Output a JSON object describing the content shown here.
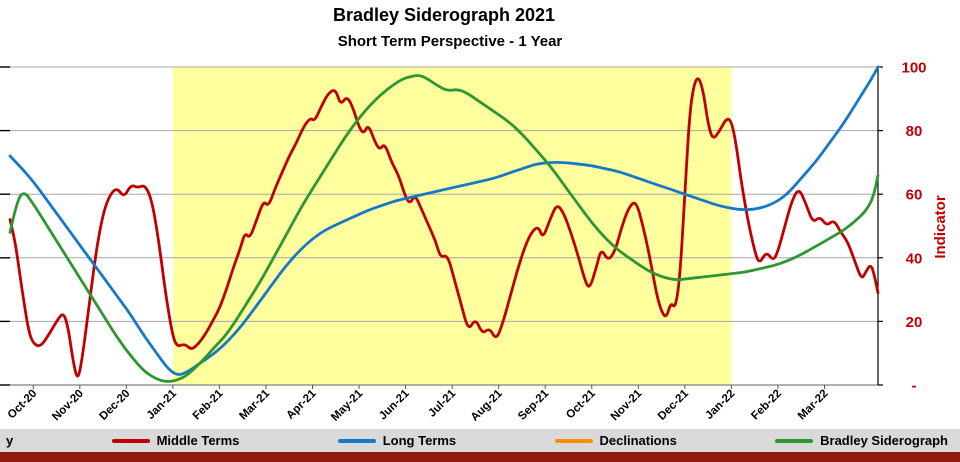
{
  "title": "Bradley Siderograph 2021",
  "subtitle": "Short Term Perspective - 1 Year",
  "right_axis": {
    "label": "Indicator",
    "color": "#c00000",
    "tick_labels": [
      "100",
      "80",
      "60",
      "40",
      "20",
      "-"
    ],
    "tick_values": [
      100,
      80,
      60,
      40,
      20,
      0
    ]
  },
  "legend": {
    "background": "#d9d9d9",
    "partial_left_label": "y",
    "items": [
      {
        "label": "Middle Terms",
        "color": "#c00000"
      },
      {
        "label": "Long Terms",
        "color": "#1878c8"
      },
      {
        "label": "Declinations",
        "color": "#ff8c00"
      },
      {
        "label": "Bradley Siderograph",
        "color": "#2e9632"
      }
    ]
  },
  "footer_bar_color": "#8f1a10",
  "colors": {
    "gridline": "#a6a6a6",
    "axis_line": "#000000",
    "highlight": "#ffff9e",
    "tick_label": "#000000"
  },
  "chart_data": {
    "type": "line",
    "title": "Bradley Siderograph 2021",
    "subtitle": "Short Term Perspective - 1 Year",
    "ylabel": "Indicator",
    "ylim": [
      0,
      100
    ],
    "xlim_months": [
      -0.5,
      18.15
    ],
    "grid_y": [
      20,
      40,
      60,
      80,
      100
    ],
    "x_unit": "months, 0 = Oct-20",
    "x_tick_positions": [
      0,
      1,
      2,
      3,
      4,
      5,
      6,
      7,
      8,
      9,
      10,
      11,
      12,
      13,
      14,
      15,
      16,
      17
    ],
    "x_tick_labels": [
      "Oct-20",
      "Nov-20",
      "Dec-20",
      "Jan-21",
      "Feb-21",
      "Mar-21",
      "Apr-21",
      "May-21",
      "Jun-21",
      "Jul-21",
      "Aug-21",
      "Sep-21",
      "Oct-21",
      "Nov-21",
      "Dec-21",
      "Jan-22",
      "Feb-22",
      "Mar-22"
    ],
    "highlight_band": {
      "from_month_index": 3,
      "to_month_index": 15,
      "from_label": "Jan-21",
      "to_label": "Jan-22",
      "color": "#ffff9e"
    },
    "series": [
      {
        "name": "Middle Terms",
        "color": "#c00000",
        "x": [
          -0.5,
          -0.4,
          -0.3,
          -0.2,
          -0.1,
          0,
          0.15,
          0.3,
          0.5,
          0.65,
          0.75,
          0.85,
          0.95,
          1.05,
          1.2,
          1.35,
          1.5,
          1.65,
          1.8,
          1.95,
          2.1,
          2.25,
          2.4,
          2.55,
          2.7,
          2.85,
          3.0,
          3.1,
          3.25,
          3.4,
          3.55,
          3.7,
          3.85,
          4.0,
          4.15,
          4.3,
          4.45,
          4.55,
          4.65,
          4.8,
          4.95,
          5.05,
          5.2,
          5.35,
          5.5,
          5.65,
          5.8,
          5.95,
          6.05,
          6.2,
          6.35,
          6.5,
          6.6,
          6.75,
          6.9,
          7.0,
          7.1,
          7.2,
          7.35,
          7.45,
          7.55,
          7.7,
          7.85,
          8.0,
          8.1,
          8.2,
          8.35,
          8.5,
          8.65,
          8.75,
          8.9,
          9.05,
          9.2,
          9.35,
          9.5,
          9.65,
          9.8,
          9.95,
          10.1,
          10.25,
          10.4,
          10.55,
          10.7,
          10.85,
          10.95,
          11.1,
          11.25,
          11.4,
          11.55,
          11.7,
          11.85,
          11.95,
          12.1,
          12.2,
          12.35,
          12.5,
          12.65,
          12.8,
          12.95,
          13.1,
          13.25,
          13.4,
          13.5,
          13.6,
          13.7,
          13.8,
          13.9,
          14.0,
          14.1,
          14.2,
          14.3,
          14.4,
          14.5,
          14.6,
          14.75,
          14.9,
          15.0,
          15.1,
          15.2,
          15.35,
          15.5,
          15.6,
          15.75,
          15.9,
          16.0,
          16.15,
          16.3,
          16.45,
          16.6,
          16.75,
          16.9,
          17.05,
          17.2,
          17.35,
          17.5,
          17.65,
          17.8,
          17.9,
          18.0,
          18.08,
          18.15
        ],
        "y": [
          52,
          46,
          36,
          26,
          17,
          13,
          12,
          15,
          20,
          23,
          18,
          8,
          1,
          8,
          25,
          42,
          54,
          60,
          62,
          59,
          63,
          62,
          63,
          58,
          45,
          28,
          15,
          12,
          13,
          11,
          13,
          16,
          20,
          24,
          30,
          37,
          43,
          48,
          46,
          52,
          58,
          56,
          62,
          67,
          72,
          76,
          81,
          84,
          83,
          88,
          92,
          93,
          88,
          91,
          86,
          81,
          79,
          82,
          76,
          74,
          76,
          70,
          66,
          59,
          57,
          60,
          55,
          50,
          45,
          40,
          41,
          33,
          25,
          17,
          21,
          16,
          18,
          14,
          20,
          28,
          36,
          43,
          48,
          50,
          46,
          52,
          57,
          54,
          48,
          41,
          33,
          30,
          37,
          43,
          39,
          42,
          50,
          56,
          58,
          50,
          40,
          28,
          23,
          21,
          26,
          24,
          35,
          60,
          85,
          95,
          97,
          92,
          82,
          77,
          80,
          84,
          83,
          76,
          65,
          52,
          42,
          38,
          42,
          39,
          42,
          50,
          58,
          62,
          57,
          51,
          53,
          50,
          52,
          48,
          45,
          39,
          33,
          36,
          38,
          34,
          29
        ]
      },
      {
        "name": "Long Terms",
        "color": "#1878c8",
        "x": [
          -0.5,
          -0.3,
          0,
          0.3,
          0.6,
          0.9,
          1.2,
          1.5,
          1.8,
          2.1,
          2.4,
          2.7,
          2.9,
          3.1,
          3.3,
          3.6,
          3.9,
          4.2,
          4.5,
          4.8,
          5.1,
          5.4,
          5.7,
          6.0,
          6.3,
          6.6,
          6.9,
          7.2,
          7.5,
          7.8,
          8.1,
          8.4,
          8.7,
          9.0,
          9.3,
          9.6,
          9.9,
          10.2,
          10.5,
          10.8,
          11.1,
          11.4,
          11.7,
          12.0,
          12.3,
          12.6,
          12.9,
          13.2,
          13.5,
          13.8,
          14.1,
          14.4,
          14.7,
          15.0,
          15.3,
          15.6,
          15.9,
          16.2,
          16.5,
          16.8,
          17.1,
          17.4,
          17.7,
          18.0,
          18.15
        ],
        "y": [
          72,
          69,
          64,
          58,
          52,
          46,
          40,
          34,
          28,
          22,
          15,
          9,
          5,
          3,
          4,
          7,
          10,
          14,
          19,
          25,
          31,
          37,
          42,
          46,
          49,
          51,
          53,
          55,
          56.5,
          58,
          59,
          60,
          61,
          62,
          63,
          64,
          65,
          66.5,
          68,
          69.5,
          70,
          70,
          69.5,
          69,
          68,
          67,
          65.5,
          64,
          62.5,
          61,
          59.5,
          58,
          56.5,
          55.5,
          55,
          55.5,
          57,
          60,
          65,
          70,
          76,
          82,
          89,
          96,
          100
        ]
      },
      {
        "name": "Declinations",
        "color": "#ff8c00",
        "x": [],
        "y": [],
        "note": "shown in legend; no visible line in plotted range"
      },
      {
        "name": "Bradley Siderograph",
        "color": "#2e9632",
        "x": [
          -0.5,
          -0.35,
          -0.2,
          0,
          0.3,
          0.6,
          0.9,
          1.2,
          1.5,
          1.8,
          2.1,
          2.4,
          2.7,
          2.9,
          3.1,
          3.3,
          3.6,
          3.9,
          4.1,
          4.3,
          4.6,
          4.9,
          5.2,
          5.5,
          5.8,
          6.1,
          6.4,
          6.7,
          7.0,
          7.3,
          7.6,
          7.9,
          8.1,
          8.3,
          8.5,
          8.7,
          8.9,
          9.1,
          9.3,
          9.6,
          9.9,
          10.2,
          10.5,
          10.8,
          11.1,
          11.4,
          11.7,
          12.0,
          12.3,
          12.6,
          12.9,
          13.2,
          13.5,
          13.8,
          14.1,
          14.4,
          14.7,
          15.0,
          15.3,
          15.6,
          15.9,
          16.2,
          16.5,
          16.8,
          17.1,
          17.4,
          17.7,
          17.9,
          18.05,
          18.15
        ],
        "y": [
          48,
          58,
          61,
          57,
          50,
          43,
          36,
          29,
          22,
          15,
          9,
          4,
          1.5,
          1,
          1.5,
          3,
          7,
          12,
          15,
          19,
          26,
          33,
          41,
          49,
          57,
          64,
          71,
          78,
          84,
          89,
          93,
          96,
          97,
          97.5,
          96,
          94,
          92.5,
          93,
          92,
          89,
          86,
          83,
          79,
          74,
          69,
          63,
          57,
          51,
          46,
          42,
          39,
          36,
          34,
          33,
          33.5,
          34,
          34.5,
          35,
          35.5,
          36.5,
          37.5,
          39,
          41,
          43.5,
          46,
          48.5,
          52,
          55,
          59,
          66
        ]
      }
    ]
  }
}
